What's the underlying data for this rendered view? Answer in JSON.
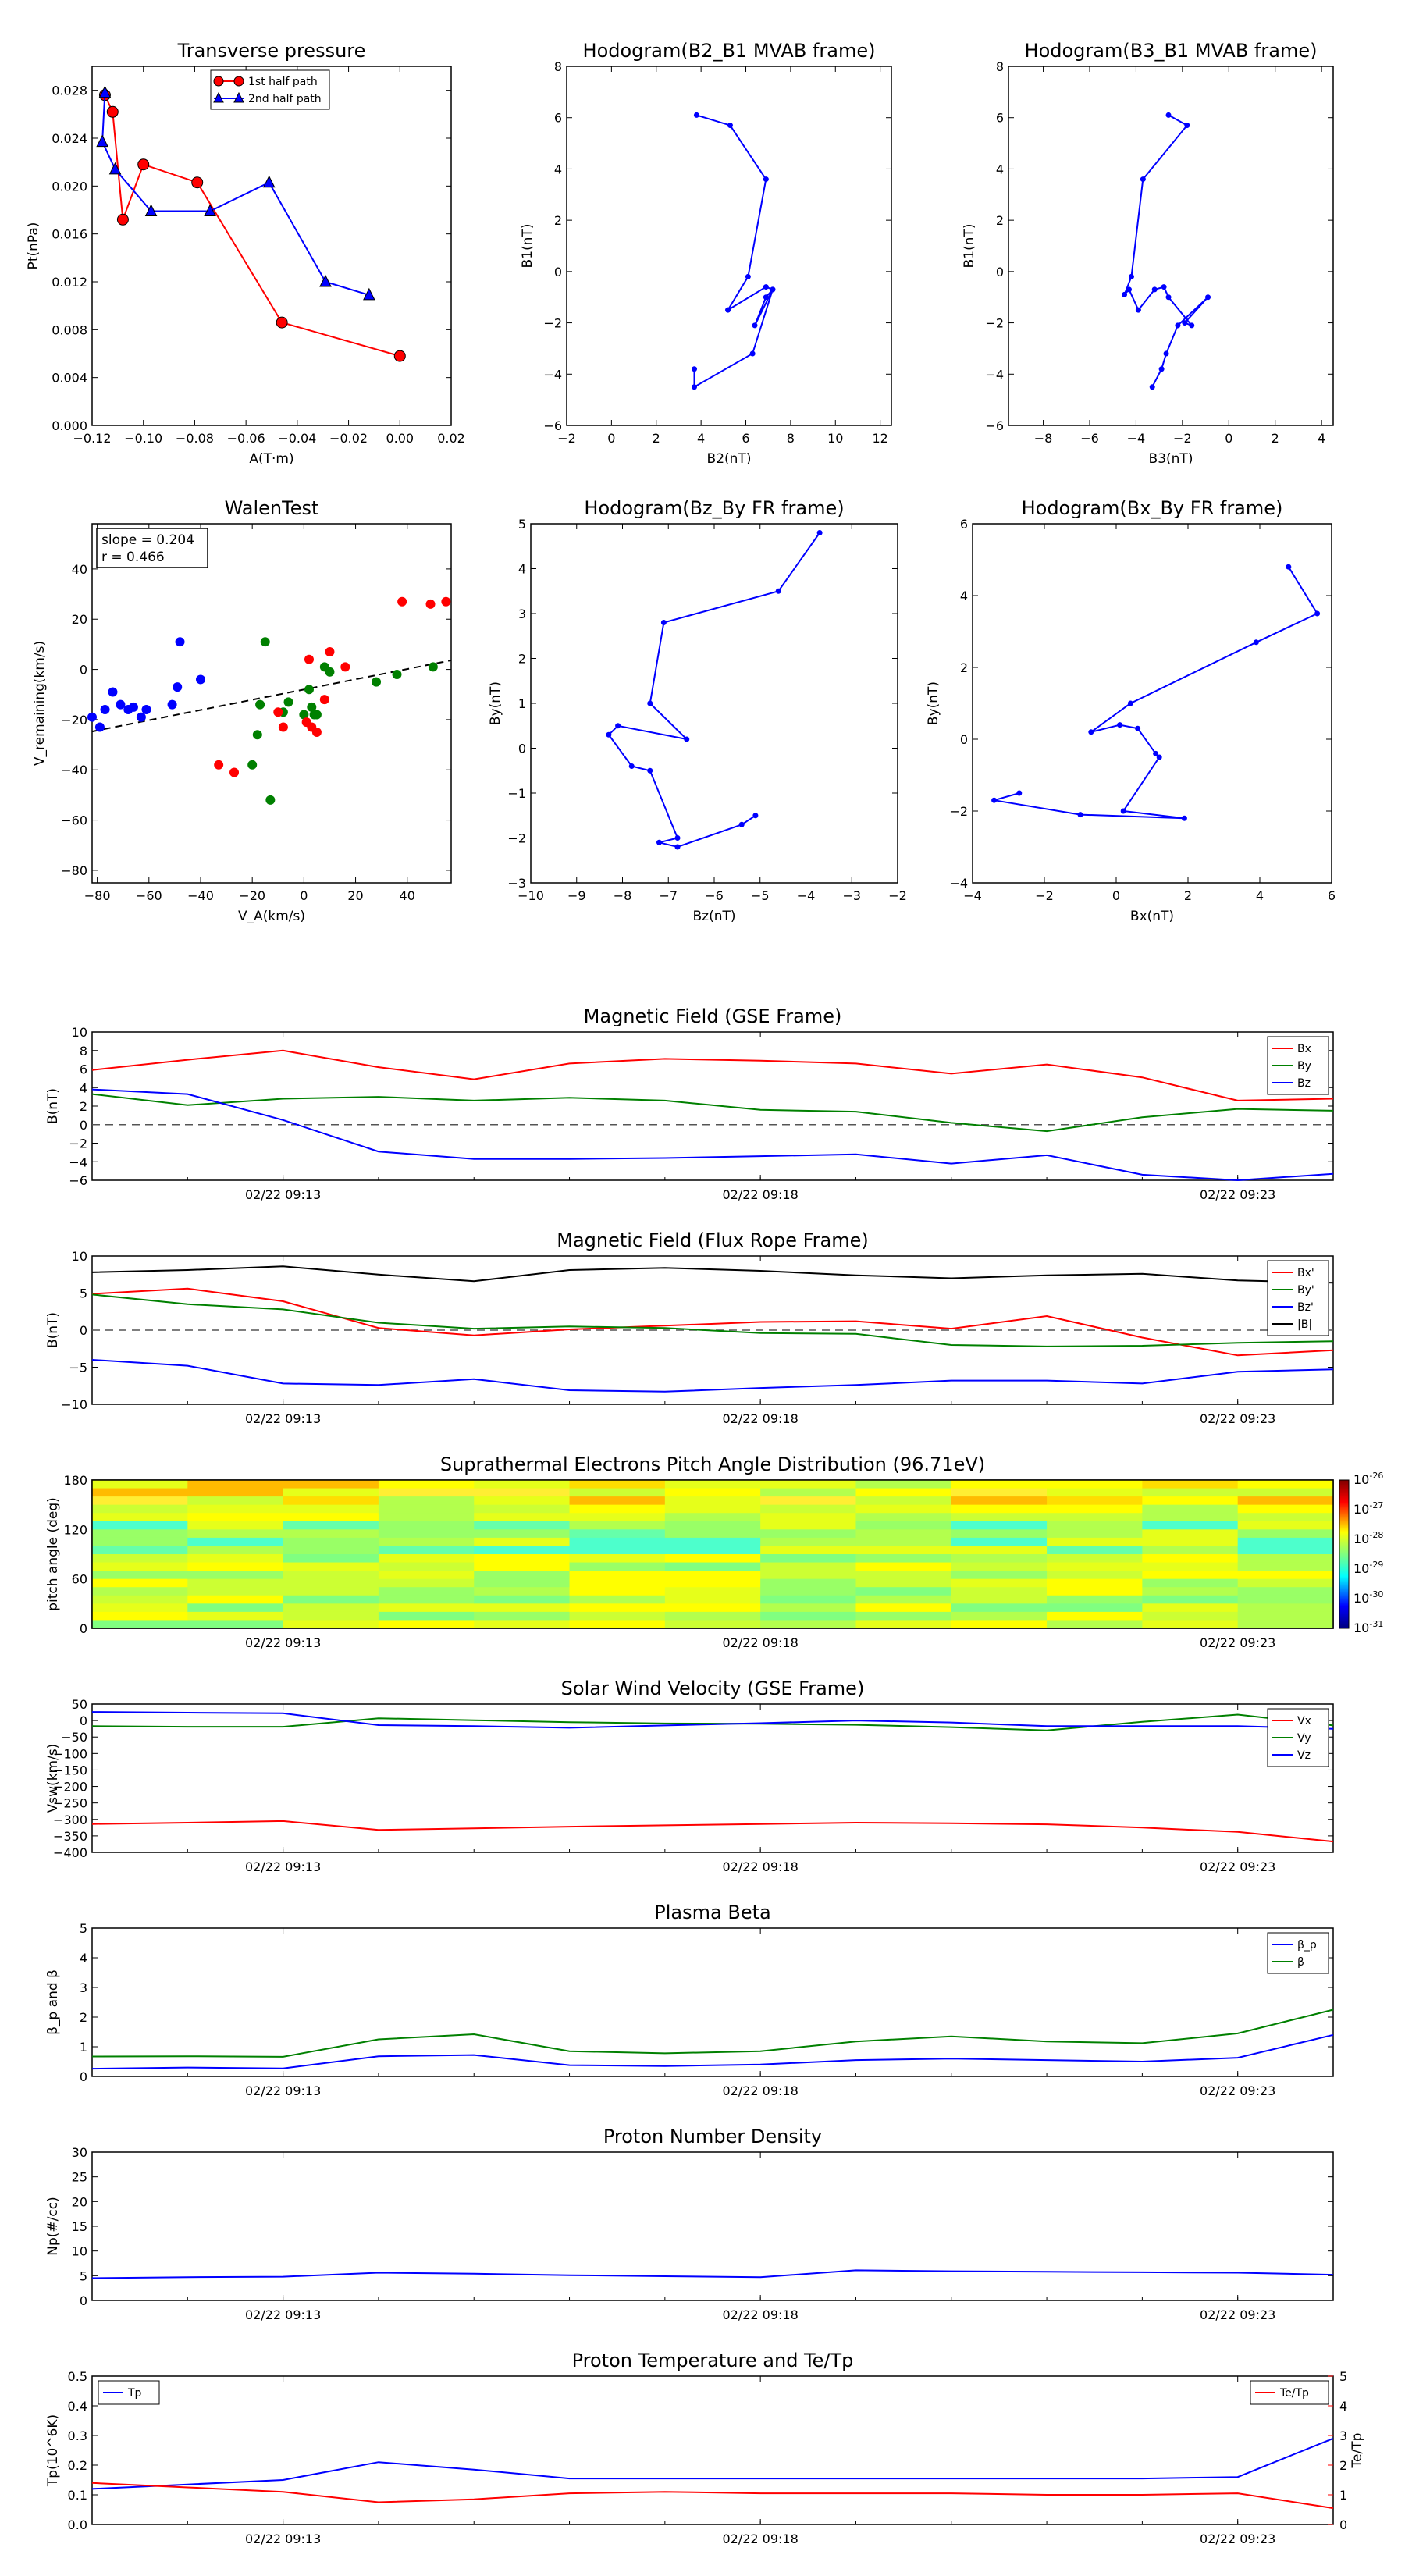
{
  "figure_colors": {
    "red": "#ff0000",
    "blue": "#0000ff",
    "green": "#008000",
    "black": "#000000"
  },
  "time_axis": {
    "ticks": [
      "02/22 09:13",
      "02/22 09:18",
      "02/22 09:23"
    ],
    "tick_minutes": [
      13,
      18,
      23
    ],
    "range_minutes": [
      11,
      24
    ]
  },
  "chart_data": [
    {
      "id": "transverse_pressure",
      "type": "line",
      "title": "Transverse pressure",
      "xlabel": "A(T·m)",
      "ylabel": "Pt(nPa)",
      "xlim": [
        -0.12,
        0.02
      ],
      "ylim": [
        0,
        0.03
      ],
      "xticks": [
        "−0.12",
        "−0.10",
        "−0.08",
        "−0.06",
        "−0.04",
        "−0.02",
        "0.00",
        "0.02"
      ],
      "yticks": [
        "0.000",
        "0.004",
        "0.008",
        "0.012",
        "0.016",
        "0.020",
        "0.024",
        "0.028"
      ],
      "legend": {
        "position": "top-center",
        "entries": [
          "1st half path",
          "2nd half path"
        ]
      },
      "series": [
        {
          "name": "1st half path",
          "color": "red",
          "marker": "circle",
          "x": [
            -0.115,
            -0.112,
            -0.108,
            -0.1,
            -0.079,
            -0.046,
            0.0
          ],
          "y": [
            0.0276,
            0.0262,
            0.0172,
            0.0218,
            0.0203,
            0.0086,
            0.0058
          ]
        },
        {
          "name": "2nd half path",
          "color": "blue",
          "marker": "triangle",
          "x": [
            -0.115,
            -0.116,
            -0.111,
            -0.097,
            -0.074,
            -0.051,
            -0.029,
            -0.012
          ],
          "y": [
            0.0278,
            0.0237,
            0.0214,
            0.0179,
            0.0179,
            0.0203,
            0.012,
            0.0109
          ]
        }
      ]
    },
    {
      "id": "hodogram_b2b1",
      "type": "line",
      "title": "Hodogram(B2_B1 MVAB frame)",
      "xlabel": "B2(nT)",
      "ylabel": "B1(nT)",
      "xlim": [
        -2,
        12.5
      ],
      "ylim": [
        -6,
        8
      ],
      "xticks": [
        "−2",
        "0",
        "2",
        "4",
        "6",
        "8",
        "10",
        "12"
      ],
      "yticks": [
        "−6",
        "−4",
        "−2",
        "0",
        "2",
        "4",
        "6",
        "8"
      ],
      "series": [
        {
          "name": "",
          "color": "blue",
          "marker": "dot",
          "x": [
            3.8,
            5.3,
            6.9,
            6.1,
            5.2,
            6.9,
            7.2,
            6.4,
            6.9,
            7.2,
            6.3,
            3.7,
            3.7
          ],
          "y": [
            6.1,
            5.7,
            3.6,
            -0.2,
            -1.5,
            -0.6,
            -0.7,
            -2.1,
            -1.0,
            -0.7,
            -3.2,
            -4.5,
            -3.8
          ]
        }
      ]
    },
    {
      "id": "hodogram_b3b1",
      "type": "line",
      "title": "Hodogram(B3_B1 MVAB frame)",
      "xlabel": "B3(nT)",
      "ylabel": "B1(nT)",
      "xlim": [
        -9.5,
        4.5
      ],
      "ylim": [
        -6,
        8
      ],
      "xticks": [
        "−8",
        "−6",
        "−4",
        "−2",
        "0",
        "2",
        "4"
      ],
      "yticks": [
        "−6",
        "−4",
        "−2",
        "0",
        "2",
        "4",
        "6",
        "8"
      ],
      "series": [
        {
          "name": "",
          "color": "blue",
          "marker": "dot",
          "x": [
            -2.6,
            -1.8,
            -3.7,
            -4.2,
            -4.5,
            -4.3,
            -3.9,
            -3.2,
            -2.8,
            -2.6,
            -1.6,
            -1.9,
            -0.9,
            -2.2,
            -2.7,
            -2.9,
            -3.3
          ],
          "y": [
            6.1,
            5.7,
            3.6,
            -0.2,
            -0.9,
            -0.7,
            -1.5,
            -0.7,
            -0.6,
            -1.0,
            -2.1,
            -2.0,
            -1.0,
            -2.1,
            -3.2,
            -3.8,
            -4.5
          ]
        }
      ]
    },
    {
      "id": "walen_test",
      "type": "scatter",
      "title": "WalenTest",
      "xlabel": "V_A(km/s)",
      "ylabel": "V_remaining(km/s)",
      "xlim": [
        -82,
        57
      ],
      "ylim": [
        -85,
        58
      ],
      "xticks": [
        "−80",
        "−60",
        "−40",
        "−20",
        "0",
        "20",
        "40"
      ],
      "yticks": [
        "−80",
        "−60",
        "−40",
        "−20",
        "0",
        "20",
        "40"
      ],
      "annotation": [
        "slope = 0.204",
        "r = 0.466"
      ],
      "fit_line": {
        "slope": 0.204,
        "intercept": -8
      },
      "series": [
        {
          "name": "",
          "color": "blue",
          "x": [
            -82,
            -79,
            -77,
            -74,
            -71,
            -68,
            -66,
            -63,
            -61,
            -51,
            -49,
            -48,
            -40
          ],
          "y": [
            -19,
            -23,
            -16,
            -9,
            -14,
            -16,
            -15,
            -19,
            -16,
            -14,
            -7,
            11,
            -4
          ]
        },
        {
          "name": "",
          "color": "green",
          "x": [
            -20,
            -18,
            -17,
            -15,
            -13,
            -8,
            -6,
            0,
            2,
            3,
            4,
            5,
            8,
            10,
            28,
            36,
            50
          ],
          "y": [
            -38,
            -26,
            -14,
            11,
            -52,
            -17,
            -13,
            -18,
            -8,
            -15,
            -18,
            -18,
            1,
            -1,
            -5,
            -2,
            1
          ]
        },
        {
          "name": "",
          "color": "red",
          "x": [
            -33,
            -27,
            -10,
            -8,
            1,
            2,
            3,
            5,
            8,
            10,
            16,
            38,
            49,
            55
          ],
          "y": [
            -38,
            -41,
            -17,
            -23,
            -21,
            4,
            -23,
            -25,
            -12,
            7,
            1,
            27,
            26,
            27
          ]
        }
      ]
    },
    {
      "id": "hodogram_bzby",
      "type": "line",
      "title": "Hodogram(Bz_By FR frame)",
      "xlabel": "Bz(nT)",
      "ylabel": "By(nT)",
      "xlim": [
        -10,
        -2
      ],
      "ylim": [
        -3,
        5
      ],
      "xticks": [
        "−10",
        "−9",
        "−8",
        "−7",
        "−6",
        "−5",
        "−4",
        "−3",
        "−2"
      ],
      "yticks": [
        "−3",
        "−2",
        "−1",
        "0",
        "1",
        "2",
        "3",
        "4",
        "5"
      ],
      "series": [
        {
          "name": "",
          "color": "blue",
          "marker": "dot",
          "x": [
            -3.7,
            -4.6,
            -7.1,
            -7.4,
            -6.6,
            -8.1,
            -8.3,
            -7.8,
            -7.4,
            -6.8,
            -7.2,
            -6.8,
            -5.4,
            -5.1
          ],
          "y": [
            4.8,
            3.5,
            2.8,
            1.0,
            0.2,
            0.5,
            0.3,
            -0.4,
            -0.5,
            -2.0,
            -2.1,
            -2.2,
            -1.7,
            -1.5
          ]
        }
      ]
    },
    {
      "id": "hodogram_bxby",
      "type": "line",
      "title": "Hodogram(Bx_By FR frame)",
      "xlabel": "Bx(nT)",
      "ylabel": "By(nT)",
      "xlim": [
        -4,
        6
      ],
      "ylim": [
        -4,
        6
      ],
      "xticks": [
        "−4",
        "−2",
        "0",
        "2",
        "4",
        "6"
      ],
      "yticks": [
        "−4",
        "−2",
        "0",
        "2",
        "4",
        "6"
      ],
      "series": [
        {
          "name": "",
          "color": "blue",
          "marker": "dot",
          "x": [
            4.8,
            5.6,
            3.9,
            0.4,
            -0.7,
            0.1,
            0.6,
            1.1,
            1.2,
            0.2,
            1.9,
            -1.0,
            -3.4,
            -2.7
          ],
          "y": [
            4.8,
            3.5,
            2.7,
            1.0,
            0.2,
            0.4,
            0.3,
            -0.4,
            -0.5,
            -2.0,
            -2.2,
            -2.1,
            -1.7,
            -1.5
          ]
        }
      ]
    },
    {
      "id": "mag_gse",
      "type": "line",
      "title": "Magnetic Field (GSE Frame)",
      "ylabel": "B(nT)",
      "ylim": [
        -6,
        10
      ],
      "yticks": [
        "−6",
        "−4",
        "−2",
        "0",
        "2",
        "4",
        "6",
        "8",
        "10"
      ],
      "zero_line": true,
      "legend": {
        "position": "top-right",
        "entries": [
          "Bx",
          "By",
          "Bz"
        ]
      },
      "x": [
        11,
        12,
        13,
        14,
        15,
        16,
        17,
        18,
        19,
        20,
        21,
        22,
        23,
        24
      ],
      "series": [
        {
          "name": "Bx",
          "color": "red",
          "values": [
            5.9,
            7.0,
            8.0,
            6.2,
            4.9,
            6.6,
            7.1,
            6.9,
            6.6,
            5.5,
            6.5,
            5.1,
            2.6,
            2.8
          ]
        },
        {
          "name": "By",
          "color": "green",
          "values": [
            3.3,
            2.1,
            2.8,
            3.0,
            2.6,
            2.9,
            2.6,
            1.6,
            1.4,
            0.2,
            -0.7,
            0.8,
            1.7,
            1.5
          ]
        },
        {
          "name": "Bz",
          "color": "blue",
          "values": [
            3.8,
            3.3,
            0.5,
            -2.9,
            -3.7,
            -3.7,
            -3.6,
            -3.4,
            -3.2,
            -4.2,
            -3.3,
            -5.4,
            -6.0,
            -5.3
          ]
        }
      ]
    },
    {
      "id": "mag_fr",
      "type": "line",
      "title": "Magnetic Field (Flux Rope Frame)",
      "ylabel": "B(nT)",
      "ylim": [
        -10,
        10
      ],
      "yticks": [
        "−10",
        "−5",
        "0",
        "5",
        "10"
      ],
      "zero_line": true,
      "legend": {
        "position": "top-right",
        "entries": [
          "Bx'",
          "By'",
          "Bz'",
          "|B|"
        ]
      },
      "x": [
        11,
        12,
        13,
        14,
        15,
        16,
        17,
        18,
        19,
        20,
        21,
        22,
        23,
        24
      ],
      "series": [
        {
          "name": "Bx'",
          "color": "red",
          "values": [
            4.9,
            5.6,
            3.9,
            0.3,
            -0.7,
            0.1,
            0.6,
            1.1,
            1.2,
            0.2,
            1.9,
            -1.0,
            -3.4,
            -2.7
          ]
        },
        {
          "name": "By'",
          "color": "green",
          "values": [
            4.8,
            3.5,
            2.8,
            1.0,
            0.2,
            0.5,
            0.3,
            -0.4,
            -0.5,
            -2.0,
            -2.2,
            -2.1,
            -1.7,
            -1.5
          ]
        },
        {
          "name": "Bz'",
          "color": "blue",
          "values": [
            -4.0,
            -4.8,
            -7.2,
            -7.4,
            -6.6,
            -8.1,
            -8.3,
            -7.8,
            -7.4,
            -6.8,
            -6.8,
            -7.2,
            -5.6,
            -5.3
          ]
        },
        {
          "name": "|B|",
          "color": "black",
          "values": [
            7.8,
            8.1,
            8.6,
            7.5,
            6.6,
            8.1,
            8.4,
            8.0,
            7.4,
            7.0,
            7.4,
            7.6,
            6.7,
            6.4
          ]
        }
      ]
    },
    {
      "id": "pad",
      "type": "heatmap",
      "title": "Suprathermal Electrons Pitch Angle Distribution (96.71eV)",
      "ylabel": "pitch angle (deg)",
      "ylim": [
        0,
        180
      ],
      "yticks": [
        "0",
        "60",
        "120",
        "180"
      ],
      "colorbar": {
        "scale": "log",
        "labels": [
          "10^-26",
          "10^-27",
          "10^-28",
          "10^-29",
          "10^-30",
          "10^-31"
        ]
      },
      "columns": 13,
      "rows": 18
    },
    {
      "id": "vsw",
      "type": "line",
      "title": "Solar Wind Velocity (GSE Frame)",
      "ylabel": "Vsw(km/s)",
      "ylim": [
        -400,
        50
      ],
      "yticks": [
        "−400",
        "−350",
        "−300",
        "−250",
        "−200",
        "−150",
        "−100",
        "−50",
        "0",
        "50"
      ],
      "legend": {
        "position": "top-right",
        "entries": [
          "Vx",
          "Vy",
          "Vz"
        ]
      },
      "x": [
        11,
        12,
        13,
        14,
        15,
        16,
        17,
        18,
        19,
        20,
        21,
        22,
        23,
        24
      ],
      "series": [
        {
          "name": "Vx",
          "color": "red",
          "values": [
            -314,
            -310,
            -305,
            -332,
            -327,
            -322,
            -318,
            -314,
            -310,
            -312,
            -315,
            -325,
            -338,
            -367
          ]
        },
        {
          "name": "Vy",
          "color": "green",
          "values": [
            -17,
            -19,
            -19,
            7,
            1,
            -5,
            -9,
            -10,
            -13,
            -20,
            -30,
            -4,
            18,
            -15
          ]
        },
        {
          "name": "Vz",
          "color": "blue",
          "values": [
            26,
            24,
            22,
            -14,
            -17,
            -22,
            -15,
            -8,
            0,
            -6,
            -17,
            -17,
            -17,
            -25
          ]
        }
      ]
    },
    {
      "id": "beta",
      "type": "line",
      "title": "Plasma Beta",
      "ylabel": "β_p and β",
      "ylim": [
        0,
        5
      ],
      "yticks": [
        "0",
        "1",
        "2",
        "3",
        "4",
        "5"
      ],
      "legend": {
        "position": "top-right",
        "entries": [
          "β_p",
          "β"
        ]
      },
      "x": [
        11,
        12,
        13,
        14,
        15,
        16,
        17,
        18,
        19,
        20,
        21,
        22,
        23,
        24
      ],
      "series": [
        {
          "name": "β_p",
          "color": "blue",
          "values": [
            0.26,
            0.3,
            0.27,
            0.68,
            0.72,
            0.38,
            0.35,
            0.4,
            0.55,
            0.6,
            0.55,
            0.5,
            0.63,
            1.4
          ]
        },
        {
          "name": "β",
          "color": "green",
          "values": [
            0.67,
            0.68,
            0.66,
            1.25,
            1.42,
            0.85,
            0.78,
            0.85,
            1.18,
            1.35,
            1.18,
            1.12,
            1.45,
            2.25
          ]
        }
      ]
    },
    {
      "id": "density",
      "type": "line",
      "title": "Proton Number Density",
      "ylabel": "Np(#/cc)",
      "ylim": [
        0,
        30
      ],
      "yticks": [
        "0",
        "5",
        "10",
        "15",
        "20",
        "25",
        "30"
      ],
      "x": [
        11,
        12,
        13,
        14,
        15,
        16,
        17,
        18,
        19,
        20,
        21,
        22,
        23,
        24
      ],
      "series": [
        {
          "name": "",
          "color": "blue",
          "values": [
            4.5,
            4.7,
            4.8,
            5.6,
            5.4,
            5.1,
            4.9,
            4.7,
            6.1,
            5.9,
            5.8,
            5.7,
            5.6,
            5.2
          ]
        }
      ]
    },
    {
      "id": "temperature",
      "type": "line",
      "title": "Proton Temperature and Te/Tp",
      "ylabel": "Tp(10^6K)",
      "y2label": "Te/Tp",
      "ylim": [
        0,
        0.5
      ],
      "y2lim": [
        0,
        5
      ],
      "yticks": [
        "0.0",
        "0.1",
        "0.2",
        "0.3",
        "0.4",
        "0.5"
      ],
      "y2ticks": [
        "0",
        "1",
        "2",
        "3",
        "4",
        "5"
      ],
      "legend": {
        "position": "top-left",
        "entries": [
          "Tp"
        ]
      },
      "legend2": {
        "position": "top-right",
        "entries": [
          "Te/Tp"
        ]
      },
      "x": [
        11,
        12,
        13,
        14,
        15,
        16,
        17,
        18,
        19,
        20,
        21,
        22,
        23,
        24
      ],
      "series": [
        {
          "name": "Tp",
          "color": "blue",
          "axis": "left",
          "values": [
            0.12,
            0.135,
            0.15,
            0.21,
            0.185,
            0.155,
            0.155,
            0.155,
            0.155,
            0.155,
            0.155,
            0.155,
            0.16,
            0.29
          ]
        },
        {
          "name": "Te/Tp",
          "color": "red",
          "axis": "right",
          "values": [
            1.4,
            1.25,
            1.1,
            0.75,
            0.85,
            1.05,
            1.1,
            1.05,
            1.05,
            1.05,
            1.0,
            1.0,
            1.05,
            0.55
          ]
        }
      ]
    }
  ]
}
